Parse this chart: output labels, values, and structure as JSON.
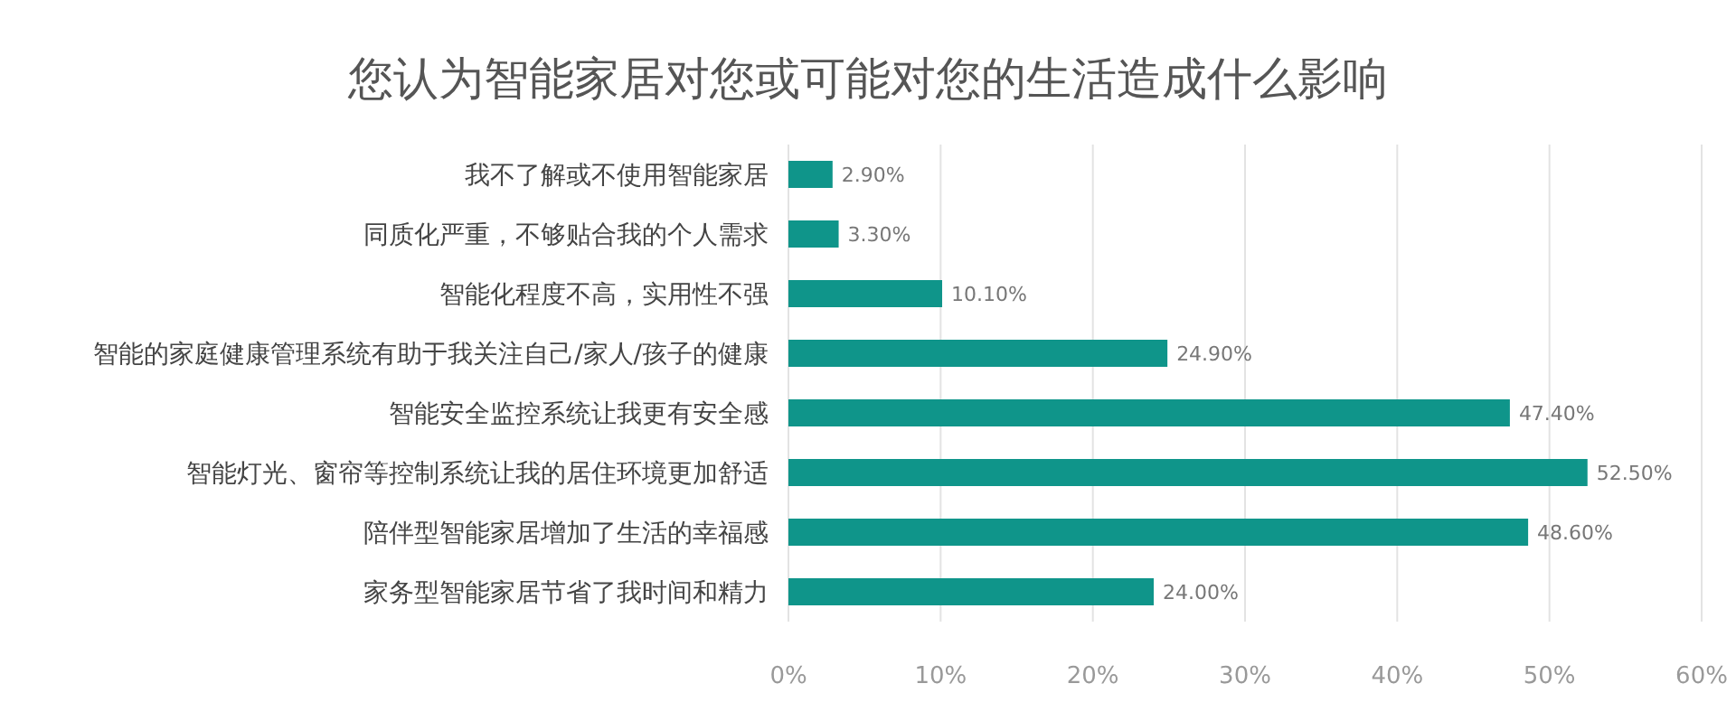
{
  "chart_data": {
    "type": "bar",
    "orientation": "horizontal",
    "title": "您认为智能家居对您或可能对您的生活造成什么影响",
    "categories": [
      "我不了解或不使用智能家居",
      "同质化严重，不够贴合我的个人需求",
      "智能化程度不高，实用性不强",
      "智能的家庭健康管理系统有助于我关注自己/家人/孩子的健康",
      "智能安全监控系统让我更有安全感",
      "智能灯光、窗帘等控制系统让我的居住环境更加舒适",
      "陪伴型智能家居增加了生活的幸福感",
      "家务型智能家居节省了我时间和精力"
    ],
    "values": [
      2.9,
      3.3,
      10.1,
      24.9,
      47.4,
      52.5,
      48.6,
      24.0
    ],
    "value_labels": [
      "2.90%",
      "3.30%",
      "10.10%",
      "24.90%",
      "47.40%",
      "52.50%",
      "48.60%",
      "24.00%"
    ],
    "color": "#0f958a",
    "xlim": [
      0,
      60
    ],
    "xticks": [
      {
        "value": 0,
        "label": "0%"
      },
      {
        "value": 10,
        "label": "10%"
      },
      {
        "value": 20,
        "label": "20%"
      },
      {
        "value": 30,
        "label": "30%"
      },
      {
        "value": 40,
        "label": "40%"
      },
      {
        "value": 50,
        "label": "50%"
      },
      {
        "value": 60,
        "label": "60%"
      }
    ],
    "grid": "x"
  }
}
